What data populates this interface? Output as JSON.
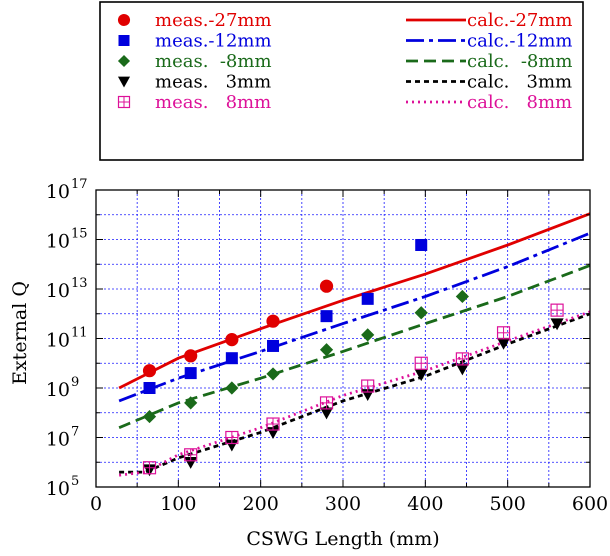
{
  "chart_data": {
    "type": "scatter",
    "xlabel": "CSWG Length (mm)",
    "ylabel": "External Q",
    "xlim": [
      0,
      600
    ],
    "ylim_log10": [
      5,
      17
    ],
    "y_scale": "log",
    "grid": true,
    "legend_placement": "top",
    "x_ticks": [
      {
        "value": 0,
        "label": "0"
      },
      {
        "value": 100,
        "label": "100"
      },
      {
        "value": 200,
        "label": "200"
      },
      {
        "value": 300,
        "label": "300"
      },
      {
        "value": 400,
        "label": "400"
      },
      {
        "value": 500,
        "label": "500"
      },
      {
        "value": 600,
        "label": "600"
      }
    ],
    "y_ticks": [
      {
        "exp": 5,
        "base": "10",
        "exponent": "5"
      },
      {
        "exp": 7,
        "base": "10",
        "exponent": "7"
      },
      {
        "exp": 9,
        "base": "10",
        "exponent": "9"
      },
      {
        "exp": 11,
        "base": "10",
        "exponent": "11"
      },
      {
        "exp": 13,
        "base": "10",
        "exponent": "13"
      },
      {
        "exp": 15,
        "base": "10",
        "exponent": "15"
      },
      {
        "exp": 17,
        "base": "10",
        "exponent": "17"
      }
    ],
    "measured": [
      {
        "name": "meas.-27mm",
        "color": "#e00000",
        "marker": "circle",
        "x": [
          65,
          115,
          165,
          215,
          280
        ],
        "y": [
          5000000000.0,
          20000000000.0,
          90000000000.0,
          500000000000.0,
          13000000000000.0
        ]
      },
      {
        "name": "meas.-12mm",
        "color": "#0000dd",
        "marker": "square",
        "x": [
          65,
          115,
          165,
          215,
          280,
          330,
          395
        ],
        "y": [
          1000000000.0,
          4000000000.0,
          16000000000.0,
          50000000000.0,
          800000000000.0,
          4000000000000.0,
          600000000000000.0
        ]
      },
      {
        "name": "meas.  -8mm",
        "color": "#1a6a1a",
        "marker": "diamond",
        "x": [
          65,
          115,
          165,
          215,
          280,
          330,
          395,
          445
        ],
        "y": [
          70000000.0,
          250000000.0,
          1000000000.0,
          3700000000.0,
          35000000000.0,
          140000000000.0,
          1100000000000.0,
          5000000000000.0
        ]
      },
      {
        "name": "meas.   3mm",
        "color": "#000000",
        "marker": "triangle-down",
        "x": [
          65,
          115,
          165,
          215,
          280,
          330,
          395,
          445,
          495,
          560
        ],
        "y": [
          500000.0,
          1000000.0,
          5000000.0,
          16000000.0,
          100000000.0,
          550000000.0,
          3500000000.0,
          6000000000.0,
          65000000000.0,
          400000000000.0
        ]
      },
      {
        "name": "meas.   8mm",
        "color": "#dd1199",
        "marker": "square-plus",
        "x": [
          65,
          115,
          165,
          215,
          280,
          330,
          395,
          445,
          495,
          560
        ],
        "y": [
          600000.0,
          2000000.0,
          10000000.0,
          35000000.0,
          250000000.0,
          1200000000.0,
          10000000000.0,
          15000000000.0,
          170000000000.0,
          1400000000000.0
        ]
      }
    ],
    "calculated": [
      {
        "name": "calc.-27mm",
        "color": "#e00000",
        "dash": "",
        "x": [
          28,
          100,
          200,
          300,
          400,
          500,
          600
        ],
        "y": [
          1000000000.0,
          16000000000.0,
          250000000000.0,
          3500000000000.0,
          40000000000000.0,
          600000000000000.0,
          1.1e+16
        ]
      },
      {
        "name": "calc.-12mm",
        "color": "#0000dd",
        "dash": "18,5,4,5",
        "x": [
          28,
          100,
          200,
          300,
          400,
          500,
          600
        ],
        "y": [
          300000000.0,
          2500000000.0,
          30000000000.0,
          400000000000.0,
          5000000000000.0,
          80000000000000.0,
          1800000000000000.0
        ]
      },
      {
        "name": "calc.  -8mm",
        "color": "#1a6a1a",
        "dash": "12,6",
        "x": [
          28,
          100,
          200,
          300,
          400,
          500,
          600
        ],
        "y": [
          25000000.0,
          250000000.0,
          2500000000.0,
          30000000000.0,
          400000000000.0,
          5000000000000.0,
          90000000000000.0
        ]
      },
      {
        "name": "calc.   3mm",
        "color": "#000000",
        "dash": "5,4",
        "x": [
          28,
          60,
          100,
          200,
          300,
          400,
          500,
          600
        ],
        "y": [
          400000.0,
          400000.0,
          1500000.0,
          16000000.0,
          300000000.0,
          3000000000.0,
          60000000000.0,
          1000000000000.0
        ]
      },
      {
        "name": "calc.   8mm",
        "color": "#dd1199",
        "dash": "2,4",
        "x": [
          28,
          60,
          100,
          200,
          300,
          400,
          500,
          600
        ],
        "y": [
          300000.0,
          400000.0,
          2000000.0,
          25000000.0,
          500000000.0,
          5000000000.0,
          80000000000.0,
          1200000000000.0
        ]
      }
    ]
  }
}
